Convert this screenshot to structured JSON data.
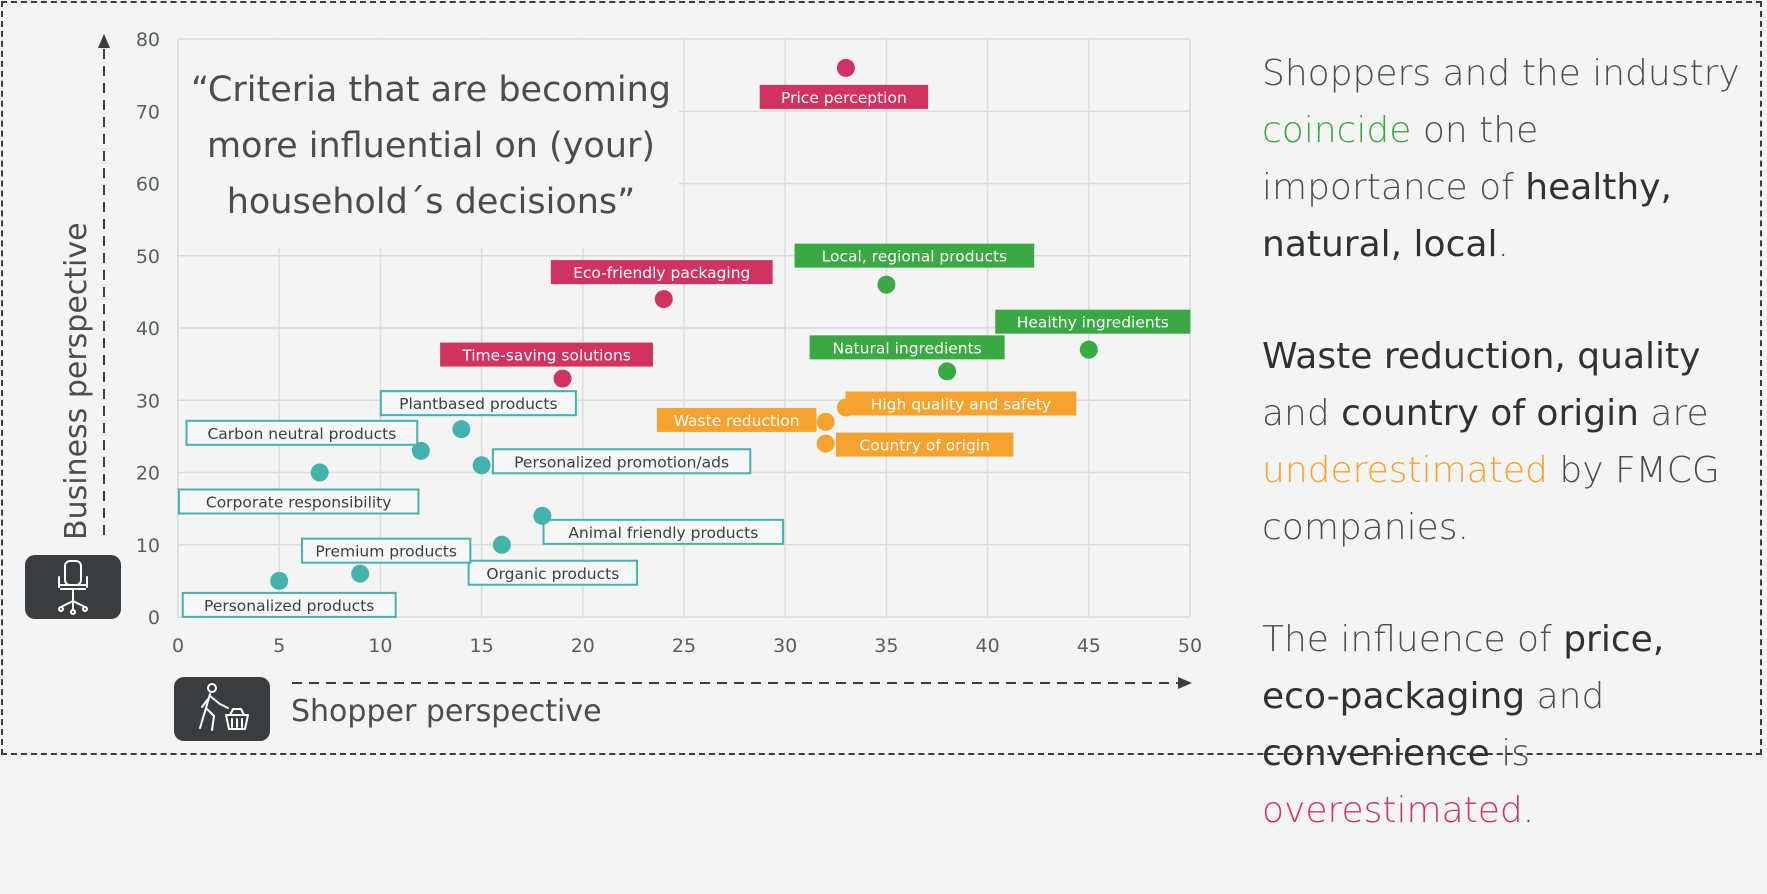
{
  "colors": {
    "pink": "#d13361",
    "green": "#3aa843",
    "orange": "#f5a32e",
    "teal": "#45b3ad",
    "axis": "#3a3d40"
  },
  "chart_data": {
    "type": "scatter",
    "title": "“Criteria that are becoming more influential on (your) household´s decisions”",
    "title_lines": [
      "“Criteria that are becoming",
      "more influential on (your)",
      "household´s decisions”"
    ],
    "xlabel": "Shopper perspective",
    "ylabel": "Business perspective",
    "xlim": [
      0,
      50
    ],
    "ylim": [
      0,
      80
    ],
    "x_ticks": [
      0,
      5,
      10,
      15,
      20,
      25,
      30,
      35,
      40,
      45,
      50
    ],
    "y_ticks": [
      0,
      10,
      20,
      30,
      40,
      50,
      60,
      70,
      80
    ],
    "grid": true,
    "points": [
      {
        "label": "Price perception",
        "x": 33,
        "y": 76,
        "group": "overestimated",
        "color": "pink"
      },
      {
        "label": "Eco-friendly packaging",
        "x": 24,
        "y": 44,
        "group": "overestimated",
        "color": "pink"
      },
      {
        "label": "Time-saving solutions",
        "x": 19,
        "y": 33,
        "group": "overestimated",
        "color": "pink"
      },
      {
        "label": "Local, regional products",
        "x": 35,
        "y": 46,
        "group": "coincide",
        "color": "green"
      },
      {
        "label": "Healthy ingredients",
        "x": 45,
        "y": 37,
        "group": "coincide",
        "color": "green"
      },
      {
        "label": "Natural ingredients",
        "x": 38,
        "y": 34,
        "group": "coincide",
        "color": "green"
      },
      {
        "label": "High quality and safety",
        "x": 33,
        "y": 29,
        "group": "underestimated",
        "color": "orange"
      },
      {
        "label": "Waste reduction",
        "x": 32,
        "y": 27,
        "group": "underestimated",
        "color": "orange"
      },
      {
        "label": "Country of origin",
        "x": 32,
        "y": 24,
        "group": "underestimated",
        "color": "orange"
      },
      {
        "label": "Plantbased products",
        "x": 14,
        "y": 26,
        "group": "other",
        "color": "teal"
      },
      {
        "label": "Carbon neutral products",
        "x": 12,
        "y": 23,
        "group": "other",
        "color": "teal"
      },
      {
        "label": "Personalized promotion/ads",
        "x": 15,
        "y": 21,
        "group": "other",
        "color": "teal"
      },
      {
        "label": "Corporate responsibility",
        "x": 7,
        "y": 20,
        "group": "other",
        "color": "teal"
      },
      {
        "label": "Animal friendly products",
        "x": 18,
        "y": 14,
        "group": "other",
        "color": "teal"
      },
      {
        "label": "Organic products",
        "x": 16,
        "y": 10,
        "group": "other",
        "color": "teal"
      },
      {
        "label": "Premium products",
        "x": 9,
        "y": 6,
        "group": "other",
        "color": "teal"
      },
      {
        "label": "Personalized products",
        "x": 5,
        "y": 5,
        "group": "other",
        "color": "teal"
      }
    ]
  },
  "panel": {
    "p1": {
      "a": "Shoppers and the industry ",
      "b": "coincide",
      "c": " on the importance of ",
      "d": "healthy, natural, local",
      "e": "."
    },
    "p2": {
      "a": "Waste reduction, quality",
      "b": " and ",
      "c": "country of origin",
      "d": " are ",
      "e": "underestimated",
      "f": " by FMCG companies."
    },
    "p3": {
      "a": "The influence of ",
      "b": "price, eco-packaging",
      "c": " and ",
      "d": "convenience",
      "e": " is ",
      "f": "overestimated",
      "g": "."
    }
  },
  "icons": {
    "business": "office-chair-icon",
    "shopper": "shopper-with-basket-icon"
  }
}
